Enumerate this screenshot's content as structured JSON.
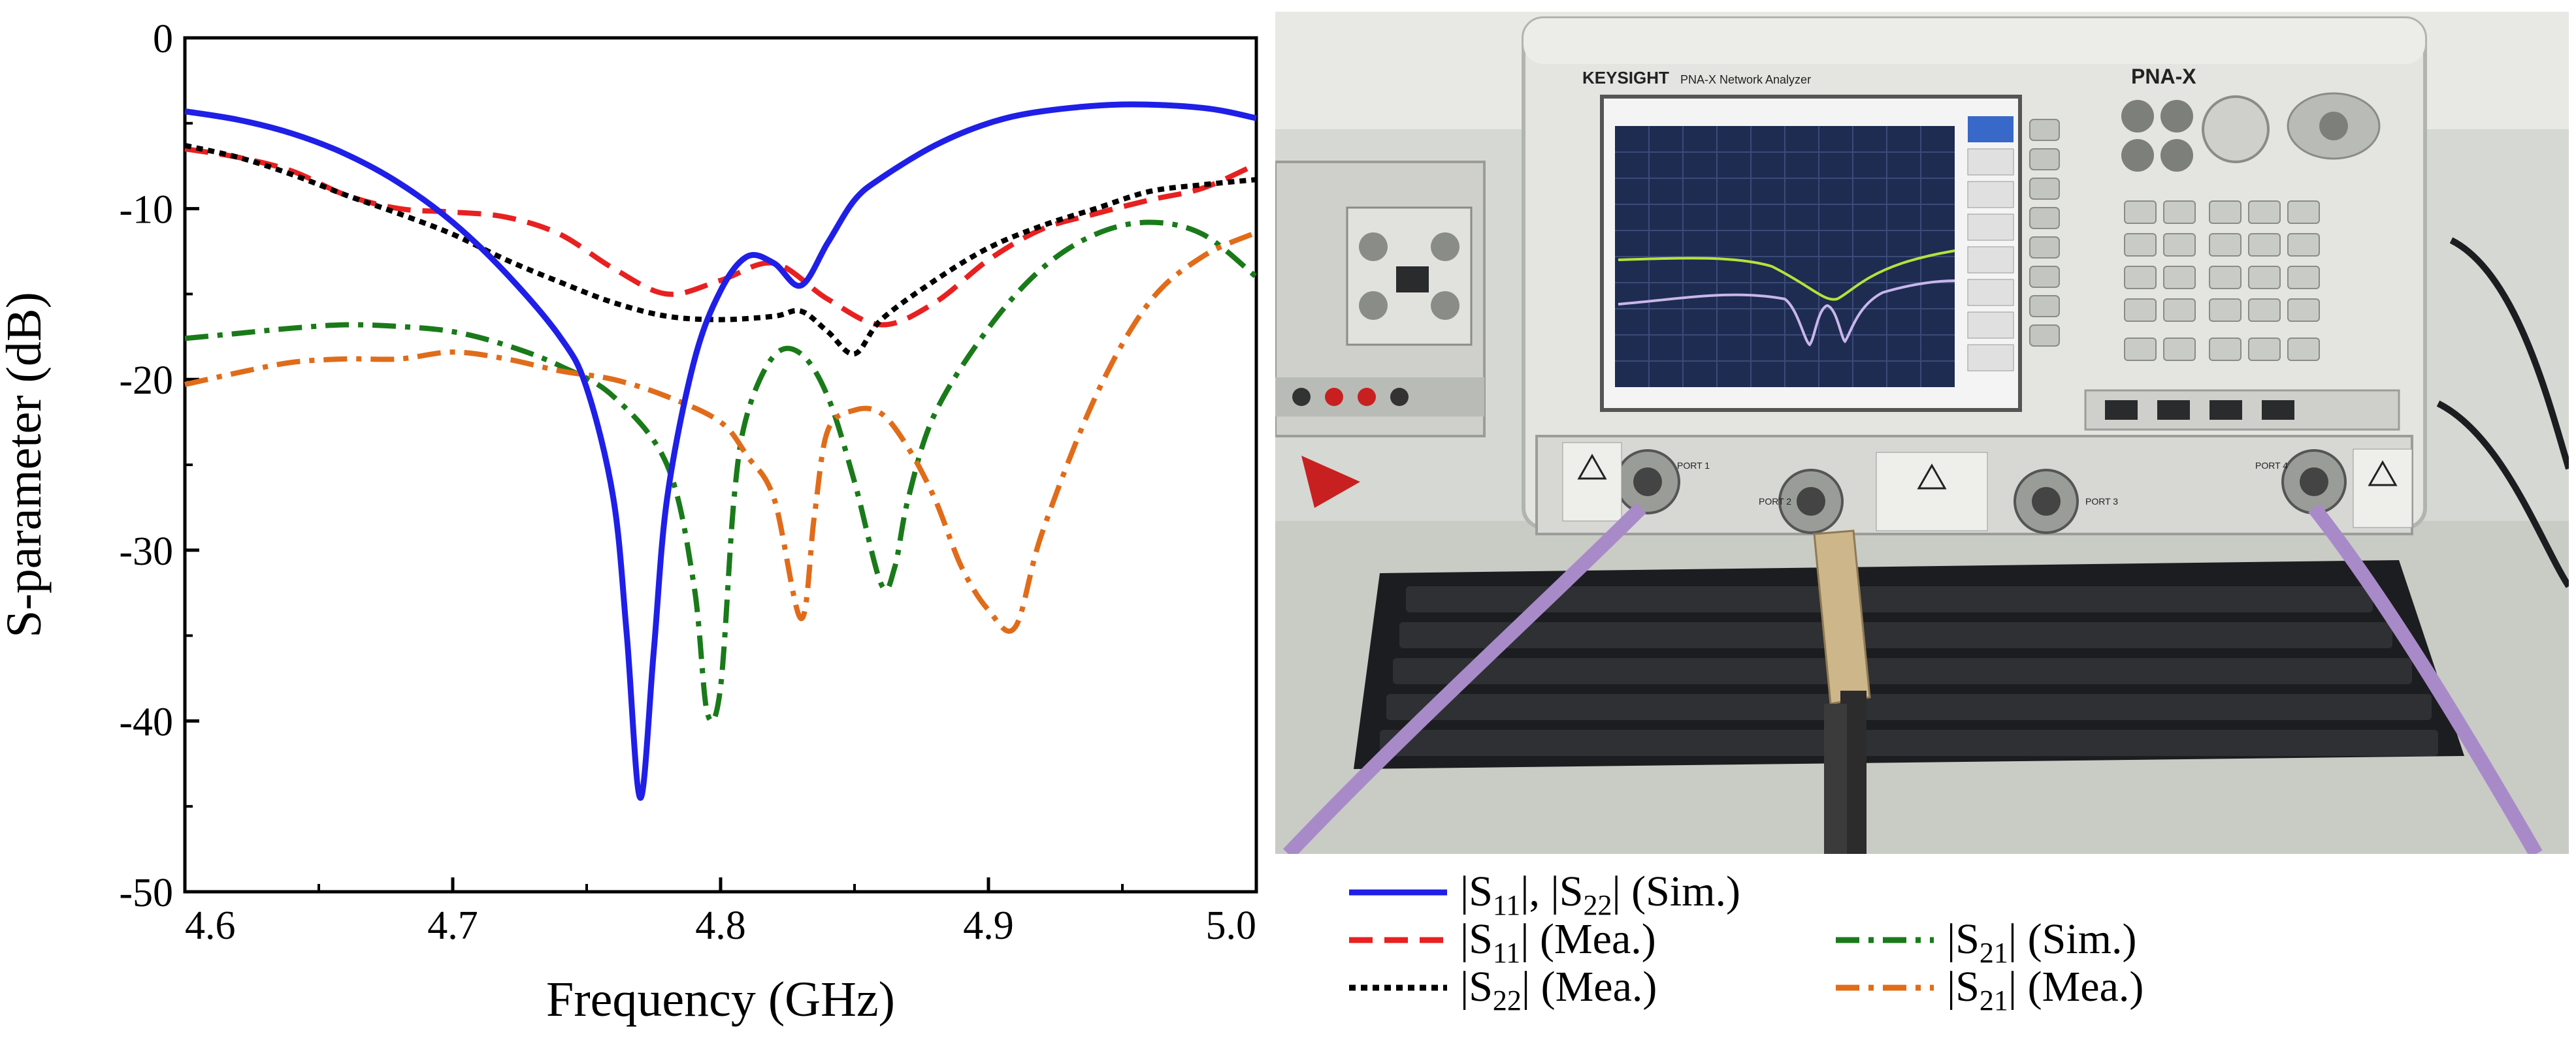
{
  "chart_data": {
    "type": "line",
    "title": "",
    "xlabel": "Frequency (GHz)",
    "ylabel": "S-parameter (dB)",
    "xlim": [
      4.6,
      5.0
    ],
    "ylim": [
      -50,
      0
    ],
    "xticks": [
      "4.6",
      "4.7",
      "4.8",
      "4.9",
      "5.0"
    ],
    "yticks": [
      "0",
      "-10",
      "-20",
      "-30",
      "-40",
      "-50"
    ],
    "grid": false,
    "legend_position": "bottom-right",
    "series": [
      {
        "name": "|S11|, |S22| (Sim.)",
        "legend_main": "|S",
        "legend_sub": "11",
        "legend_mid": "|, |S",
        "legend_sub2": "22",
        "legend_tail": "| (Sim.)",
        "color": "#1f1fe8",
        "dash": "solid",
        "x": [
          4.6,
          4.62,
          4.64,
          4.66,
          4.68,
          4.7,
          4.72,
          4.74,
          4.75,
          4.76,
          4.765,
          4.77,
          4.775,
          4.78,
          4.79,
          4.8,
          4.81,
          4.82,
          4.83,
          4.84,
          4.85,
          4.86,
          4.88,
          4.9,
          4.92,
          4.95,
          4.98,
          5.0
        ],
        "y": [
          -4.3,
          -4.8,
          -5.6,
          -6.8,
          -8.5,
          -10.8,
          -13.8,
          -17.5,
          -20.5,
          -27.0,
          -35.0,
          -44.5,
          -36.0,
          -27.0,
          -19.0,
          -14.8,
          -12.8,
          -13.2,
          -14.5,
          -12.0,
          -9.5,
          -8.2,
          -6.3,
          -5.0,
          -4.3,
          -3.9,
          -4.1,
          -4.7
        ]
      },
      {
        "name": "|S11| (Mea.)",
        "legend_main": "|S",
        "legend_sub": "11",
        "legend_tail": "| (Mea.)",
        "color": "#e82020",
        "dash": "dashed",
        "x": [
          4.6,
          4.62,
          4.64,
          4.66,
          4.68,
          4.7,
          4.72,
          4.74,
          4.76,
          4.78,
          4.8,
          4.82,
          4.84,
          4.86,
          4.88,
          4.9,
          4.92,
          4.94,
          4.96,
          4.98,
          5.0
        ],
        "y": [
          -6.5,
          -7.0,
          -7.8,
          -9.2,
          -10.0,
          -10.2,
          -10.5,
          -11.5,
          -13.5,
          -15.0,
          -14.2,
          -13.2,
          -15.3,
          -16.8,
          -15.5,
          -13.0,
          -11.2,
          -10.3,
          -9.5,
          -8.8,
          -7.4
        ]
      },
      {
        "name": "|S22| (Mea.)",
        "legend_main": "|S",
        "legend_sub": "22",
        "legend_tail": "| (Mea.)",
        "color": "#000000",
        "dash": "dotted",
        "x": [
          4.6,
          4.62,
          4.64,
          4.66,
          4.68,
          4.7,
          4.72,
          4.74,
          4.76,
          4.78,
          4.8,
          4.82,
          4.83,
          4.84,
          4.85,
          4.86,
          4.88,
          4.9,
          4.92,
          4.94,
          4.96,
          4.98,
          5.0
        ],
        "y": [
          -6.3,
          -7.0,
          -8.0,
          -9.2,
          -10.3,
          -11.5,
          -13.0,
          -14.3,
          -15.5,
          -16.3,
          -16.5,
          -16.3,
          -16.0,
          -17.2,
          -18.5,
          -16.5,
          -14.2,
          -12.3,
          -11.0,
          -10.0,
          -9.0,
          -8.6,
          -8.3
        ]
      },
      {
        "name": "|S21| (Sim.)",
        "legend_main": "|S",
        "legend_sub": "21",
        "legend_tail": "| (Sim.)",
        "color": "#1a7a1a",
        "dash": "dashdot",
        "x": [
          4.6,
          4.62,
          4.64,
          4.66,
          4.68,
          4.7,
          4.72,
          4.74,
          4.76,
          4.78,
          4.79,
          4.795,
          4.8,
          4.805,
          4.81,
          4.82,
          4.83,
          4.84,
          4.85,
          4.86,
          4.865,
          4.87,
          4.88,
          4.9,
          4.92,
          4.94,
          4.96,
          4.98,
          5.0
        ],
        "y": [
          -17.6,
          -17.3,
          -17.0,
          -16.8,
          -16.9,
          -17.2,
          -18.0,
          -19.2,
          -21.0,
          -25.0,
          -32.0,
          -39.5,
          -38.0,
          -27.0,
          -22.0,
          -18.6,
          -18.5,
          -21.0,
          -26.0,
          -32.0,
          -31.0,
          -27.0,
          -22.0,
          -17.0,
          -13.5,
          -11.5,
          -10.8,
          -11.5,
          -14.0
        ]
      },
      {
        "name": "|S21| (Mea.)",
        "legend_main": "|S",
        "legend_sub": "21",
        "legend_tail": "| (Mea.)",
        "color": "#e06c1a",
        "dash": "dashdot",
        "x": [
          4.6,
          4.62,
          4.64,
          4.66,
          4.68,
          4.7,
          4.72,
          4.74,
          4.76,
          4.78,
          4.8,
          4.81,
          4.82,
          4.83,
          4.835,
          4.84,
          4.85,
          4.86,
          4.87,
          4.88,
          4.89,
          4.9,
          4.91,
          4.92,
          4.94,
          4.96,
          4.98,
          5.0
        ],
        "y": [
          -20.3,
          -19.6,
          -19.0,
          -18.8,
          -18.8,
          -18.4,
          -18.8,
          -19.5,
          -20.0,
          -21.0,
          -22.5,
          -24.5,
          -27.0,
          -34.0,
          -28.0,
          -23.0,
          -21.8,
          -22.0,
          -24.0,
          -27.0,
          -31.0,
          -33.5,
          -34.5,
          -29.0,
          -21.0,
          -15.5,
          -12.8,
          -11.4
        ]
      }
    ]
  },
  "photo": {
    "brand": "KEYSIGHT",
    "model": "PNA-X",
    "subtitle": "PNA-X Network Analyzer",
    "port1": "PORT 1",
    "port2": "PORT 2",
    "port3": "PORT 3",
    "port4": "PORT 4"
  },
  "colors": {
    "instrument": "#e4e5e1",
    "screen_bg": "#1e2c52",
    "keyboard": "#1c1d20",
    "cable": "#a88ac9"
  }
}
